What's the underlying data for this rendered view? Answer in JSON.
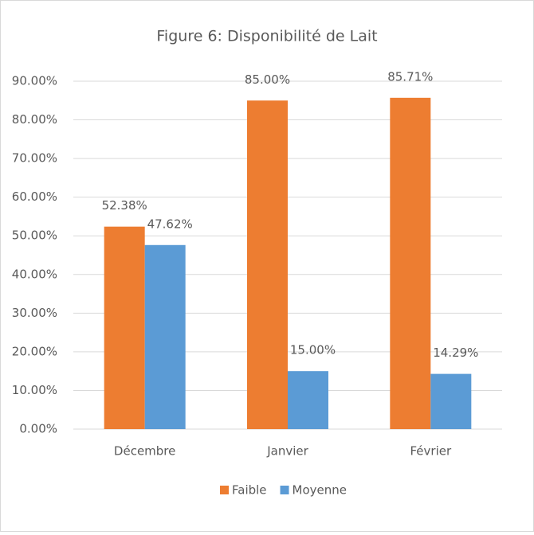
{
  "chart_data": {
    "type": "bar",
    "title": "Figure 6: Disponibilité de Lait",
    "categories": [
      "Décembre",
      "Janvier",
      "Février"
    ],
    "series": [
      {
        "name": "Faible",
        "color": "#ed7d31",
        "values": [
          52.38,
          85.0,
          85.71
        ],
        "value_labels": [
          "52.38%",
          "85.00%",
          "85.71%"
        ]
      },
      {
        "name": "Moyenne",
        "color": "#5b9bd5",
        "values": [
          47.62,
          15.0,
          14.29
        ],
        "value_labels": [
          "47.62%",
          "15.00%",
          "14.29%"
        ]
      }
    ],
    "ylim": [
      0,
      90
    ],
    "yticks": [
      {
        "value": 0,
        "label": "0.00%"
      },
      {
        "value": 10,
        "label": "10.00%"
      },
      {
        "value": 20,
        "label": "20.00%"
      },
      {
        "value": 30,
        "label": "30.00%"
      },
      {
        "value": 40,
        "label": "40.00%"
      },
      {
        "value": 50,
        "label": "50.00%"
      },
      {
        "value": 60,
        "label": "60.00%"
      },
      {
        "value": 70,
        "label": "70.00%"
      },
      {
        "value": 80,
        "label": "80.00%"
      },
      {
        "value": 90,
        "label": "90.00%"
      }
    ],
    "grid": true,
    "legend": "bottom"
  }
}
